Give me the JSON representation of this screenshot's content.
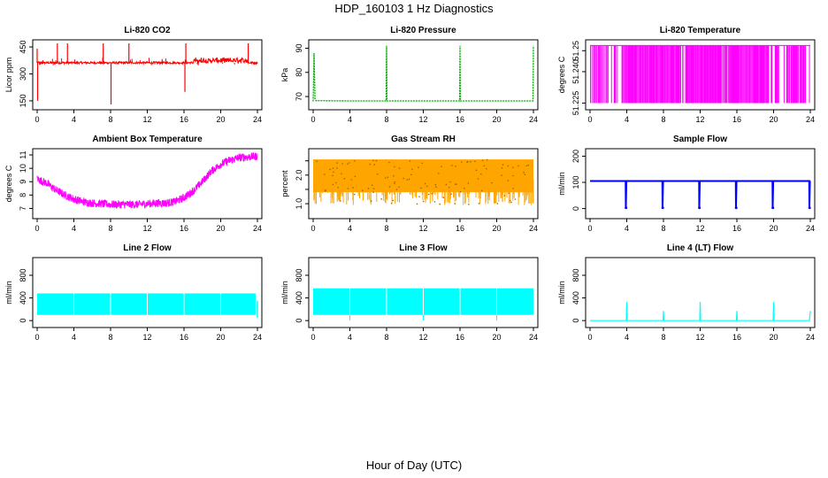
{
  "page": {
    "title": "HDP_160103  1 Hz Diagnostics",
    "xlabel": "Hour of Day (UTC)"
  },
  "chart_data": [
    {
      "type": "line",
      "title": "Li-820 CO2",
      "ylabel": "Licor ppm",
      "color": "#ff0000",
      "xlim": [
        0,
        24
      ],
      "ylim": [
        120,
        470
      ],
      "xticks": [
        0,
        4,
        8,
        12,
        16,
        20,
        24
      ],
      "yticks": [
        150,
        300,
        450
      ],
      "series": [
        {
          "x": [
            0,
            0.05,
            0.1,
            0.2,
            0.6,
            1.2,
            2,
            2.2,
            2.3,
            3,
            3.3,
            3.5,
            4,
            5,
            6,
            7,
            7.2,
            7.3,
            8,
            8.05,
            8.1,
            9,
            10,
            11,
            12,
            13,
            14,
            15,
            16,
            16.1,
            16.2,
            17,
            18,
            19,
            20,
            21,
            22,
            23,
            23.5,
            24
          ],
          "y": [
            440,
            150,
            360,
            360,
            370,
            360,
            360,
            470,
            360,
            365,
            470,
            360,
            360,
            365,
            360,
            365,
            470,
            360,
            360,
            130,
            360,
            362,
            470,
            360,
            365,
            360,
            362,
            360,
            360,
            200,
            470,
            370,
            380,
            370,
            375,
            380,
            370,
            470,
            380,
            320
          ]
        }
      ],
      "band": {
        "lo": 345,
        "hi": 380
      }
    },
    {
      "type": "line",
      "title": "Li-820 Pressure",
      "ylabel": "kPa",
      "color": "#00aa00",
      "xlim": [
        0,
        24
      ],
      "ylim": [
        66,
        92
      ],
      "xticks": [
        0,
        4,
        8,
        12,
        16,
        20,
        24
      ],
      "yticks": [
        70,
        80,
        90
      ],
      "series": [
        {
          "x": [
            0,
            0.1,
            0.2,
            0.3,
            4,
            7.95,
            8,
            8.05,
            12,
            15.95,
            16,
            16.05,
            20,
            23.95,
            24
          ],
          "y": [
            68,
            88,
            69,
            68.3,
            68.2,
            68.2,
            91,
            68.2,
            68.2,
            68.2,
            91,
            68.2,
            68.2,
            68.2,
            91
          ]
        }
      ]
    },
    {
      "type": "line",
      "title": "Li-820 Temperature",
      "ylabel": "degrees C",
      "color": "#ff00ff",
      "xlim": [
        0,
        24
      ],
      "ylim": [
        51.2235,
        51.2535
      ],
      "xticks": [
        0,
        4,
        8,
        12,
        16,
        20,
        24
      ],
      "yticks": [
        51.225,
        51.24,
        51.25
      ],
      "ytick_labels": [
        "51.225",
        "51.240",
        "51.25"
      ],
      "levels": [
        51.225,
        51.2525
      ]
    },
    {
      "type": "line",
      "title": "Ambient Box Temperature",
      "ylabel": "degrees C",
      "color": "#ff00ff",
      "xlim": [
        0,
        24
      ],
      "ylim": [
        6.5,
        11.2
      ],
      "xticks": [
        0,
        4,
        8,
        12,
        16,
        20,
        24
      ],
      "yticks": [
        7,
        8,
        9,
        10,
        11
      ],
      "series": [
        {
          "x": [
            0,
            1,
            2,
            3,
            4,
            5,
            6,
            7,
            8,
            9,
            10,
            11,
            12,
            13,
            14,
            15,
            16,
            17,
            18,
            19,
            20,
            21,
            22,
            23,
            24
          ],
          "y": [
            9.2,
            8.9,
            8.4,
            8.0,
            7.7,
            7.5,
            7.4,
            7.35,
            7.3,
            7.3,
            7.3,
            7.3,
            7.35,
            7.4,
            7.4,
            7.5,
            7.8,
            8.3,
            9.0,
            9.8,
            10.3,
            10.6,
            10.8,
            10.85,
            10.9
          ]
        }
      ],
      "noise": 0.3
    },
    {
      "type": "scatter",
      "title": "Gas Stream RH",
      "ylabel": "percent",
      "color": "#ffa500",
      "xlim": [
        0,
        24
      ],
      "ylim": [
        0.6,
        2.8
      ],
      "xticks": [
        0,
        4,
        8,
        12,
        16,
        20,
        24
      ],
      "yticks": [
        1.0,
        1.5,
        2.0,
        2.5
      ],
      "ytick_labels": [
        "1.0",
        "",
        "2.0",
        ""
      ],
      "band": {
        "lo": 0.95,
        "hi": 2.55
      }
    },
    {
      "type": "line",
      "title": "Sample Flow",
      "ylabel": "ml/min",
      "color": "#0000ff",
      "xlim": [
        0,
        24
      ],
      "ylim": [
        -25,
        215
      ],
      "xticks": [
        0,
        4,
        8,
        12,
        16,
        20,
        24
      ],
      "yticks": [
        0,
        100,
        200
      ],
      "baseline": 105,
      "dips": [
        3.9,
        7.9,
        11.9,
        15.9,
        19.9,
        23.9
      ],
      "dip_to": 0
    },
    {
      "type": "line",
      "title": "Line 2 Flow",
      "ylabel": "ml/min",
      "color": "#00ffff",
      "xlim": [
        0,
        24
      ],
      "ylim": [
        -60,
        1050
      ],
      "xticks": [
        0,
        4,
        8,
        12,
        16,
        20,
        24
      ],
      "yticks": [
        0,
        400,
        800
      ],
      "band": {
        "lo": 100,
        "hi": 480
      },
      "band_x": [
        0,
        23.8
      ],
      "gaps": [
        4,
        8,
        12,
        16,
        20
      ]
    },
    {
      "type": "line",
      "title": "Line 3 Flow",
      "ylabel": "ml/min",
      "color": "#00ffff",
      "xlim": [
        0,
        24
      ],
      "ylim": [
        -60,
        1050
      ],
      "xticks": [
        0,
        4,
        8,
        12,
        16,
        20,
        24
      ],
      "yticks": [
        0,
        400,
        800
      ],
      "band": {
        "lo": 100,
        "hi": 570
      },
      "band_x": [
        0,
        24
      ],
      "gaps": [
        4,
        8,
        12,
        16,
        20
      ]
    },
    {
      "type": "line",
      "title": "Line 4 (LT) Flow",
      "ylabel": "ml/min",
      "color": "#00ffff",
      "xlim": [
        0,
        24
      ],
      "ylim": [
        -60,
        1050
      ],
      "xticks": [
        0,
        4,
        8,
        12,
        16,
        20,
        24
      ],
      "yticks": [
        0,
        400,
        800
      ],
      "series": [
        {
          "x": [
            0,
            3.95,
            4,
            4.05,
            7.95,
            8,
            8.05,
            11.95,
            12,
            12.05,
            15.95,
            16,
            16.05,
            19.95,
            20,
            20.05,
            23.9,
            24
          ],
          "y": [
            0,
            0,
            330,
            0,
            0,
            170,
            0,
            0,
            330,
            0,
            0,
            170,
            0,
            0,
            330,
            0,
            0,
            170
          ]
        }
      ]
    }
  ]
}
